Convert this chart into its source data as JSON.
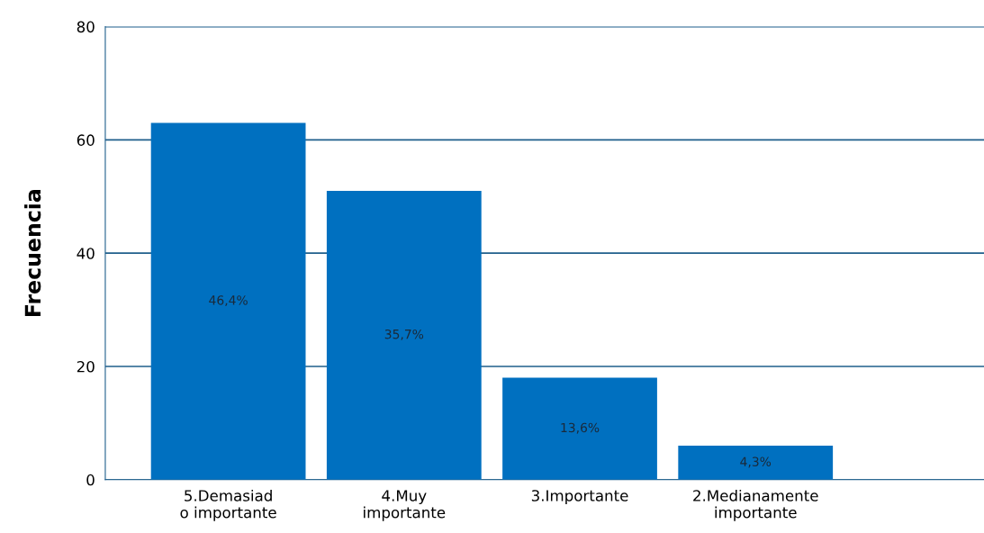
{
  "chart_data": {
    "type": "bar",
    "ylabel": "Frecuencia",
    "categories": [
      "5.Demasiad\no importante",
      "4.Muy\nimportante",
      "3.Importante",
      "2.Medianamente\nimportante"
    ],
    "values": [
      63,
      51,
      18,
      6
    ],
    "color": "#0070c0",
    "annotations": [
      "46,4%",
      "35,7%",
      "13,6%",
      "4,3%"
    ],
    "ylim": [
      0,
      80
    ],
    "yticks": [
      0,
      20,
      40,
      60,
      80
    ],
    "grid": "y"
  }
}
